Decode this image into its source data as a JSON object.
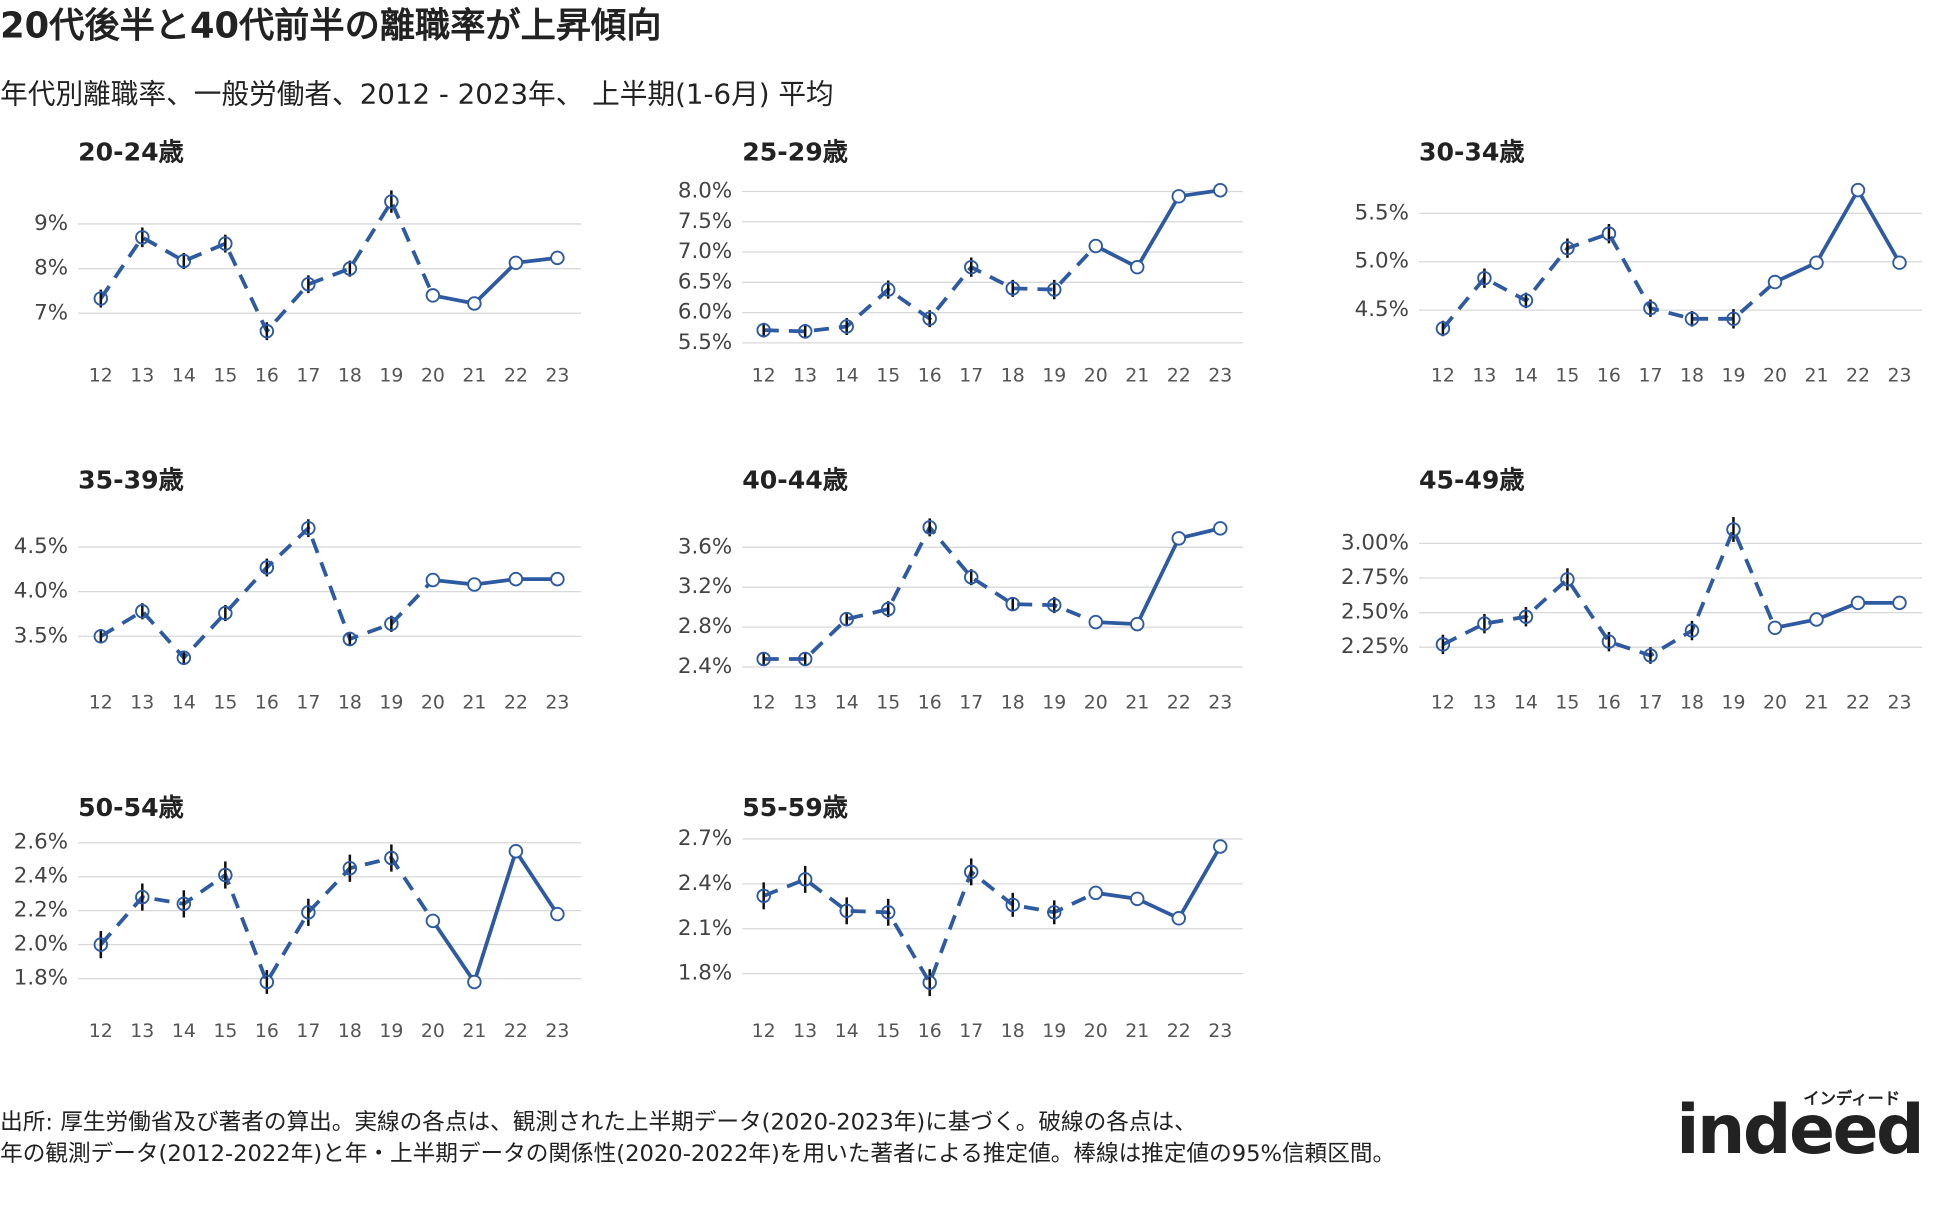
{
  "title": "20代後半と40代前半の離職率が上昇傾向",
  "subtitle": "年代別離職率、一般労働者、2012 - 2023年、 上半期(1-6月) 平均",
  "source": [
    "出所: 厚生労働省及び著者の算出。実線の各点は、観測された上半期データ(2020-2023年)に基づく。破線の各点は、",
    "年の観測データ(2012-2022年)と年・上半期データの関係性(2020-2022年)を用いた著者による推定値。棒線は推定値の95%信頼区間。"
  ],
  "logo": {
    "text": "indeed",
    "tag": "インディード"
  },
  "chart_data": [
    {
      "type": "line",
      "title": "20-24歳",
      "categories": [
        "12",
        "13",
        "14",
        "15",
        "16",
        "17",
        "18",
        "19",
        "20",
        "21",
        "22",
        "23"
      ],
      "values": [
        7.33,
        8.7,
        8.17,
        8.56,
        6.6,
        7.65,
        8.0,
        9.5,
        7.4,
        7.22,
        8.13,
        8.24
      ],
      "errors": [
        0.2,
        0.22,
        0.18,
        0.2,
        0.2,
        0.2,
        0.18,
        0.25,
        null,
        null,
        null,
        null
      ],
      "estimated": [
        true,
        true,
        true,
        true,
        true,
        true,
        true,
        true,
        false,
        false,
        false,
        false
      ],
      "color": "#2d5aa0",
      "ylim": [
        6.27,
        9.93
      ],
      "grid": true,
      "yticks": [
        {
          "value": 7,
          "label": "7%"
        },
        {
          "value": 8,
          "label": "8%"
        },
        {
          "value": 9,
          "label": "9%"
        }
      ]
    },
    {
      "type": "line",
      "title": "25-29歳",
      "categories": [
        "12",
        "13",
        "14",
        "15",
        "16",
        "17",
        "18",
        "19",
        "20",
        "21",
        "22",
        "23"
      ],
      "values": [
        5.71,
        5.69,
        5.77,
        6.38,
        5.9,
        6.75,
        6.4,
        6.38,
        7.1,
        6.75,
        7.92,
        8.02
      ],
      "errors": [
        0.12,
        0.12,
        0.14,
        0.15,
        0.14,
        0.16,
        0.14,
        0.16,
        null,
        null,
        null,
        null
      ],
      "estimated": [
        true,
        true,
        true,
        true,
        true,
        true,
        true,
        true,
        false,
        false,
        false,
        false
      ],
      "color": "#2d5aa0",
      "ylim": [
        5.45,
        8.15
      ],
      "grid": true,
      "yticks": [
        {
          "value": 5.5,
          "label": "5.5%"
        },
        {
          "value": 6,
          "label": "6.0%"
        },
        {
          "value": 6.5,
          "label": "6.5%"
        },
        {
          "value": 7,
          "label": "7.0%"
        },
        {
          "value": 7.5,
          "label": "7.5%"
        },
        {
          "value": 8,
          "label": "8.0%"
        }
      ]
    },
    {
      "type": "line",
      "title": "30-34歳",
      "categories": [
        "12",
        "13",
        "14",
        "15",
        "16",
        "17",
        "18",
        "19",
        "20",
        "21",
        "22",
        "23"
      ],
      "values": [
        4.31,
        4.83,
        4.6,
        5.14,
        5.29,
        4.52,
        4.41,
        4.41,
        4.79,
        4.99,
        5.74,
        4.99
      ],
      "errors": [
        0.08,
        0.1,
        0.08,
        0.1,
        0.1,
        0.09,
        0.08,
        0.1,
        null,
        null,
        null,
        null
      ],
      "estimated": [
        true,
        true,
        true,
        true,
        true,
        true,
        true,
        true,
        false,
        false,
        false,
        false
      ],
      "color": "#2d5aa0",
      "ylim": [
        4.13,
        5.82
      ],
      "grid": true,
      "yticks": [
        {
          "value": 4.5,
          "label": "4.5%"
        },
        {
          "value": 5,
          "label": "5.0%"
        },
        {
          "value": 5.5,
          "label": "5.5%"
        }
      ]
    },
    {
      "type": "line",
      "title": "35-39歳",
      "categories": [
        "12",
        "13",
        "14",
        "15",
        "16",
        "17",
        "18",
        "19",
        "20",
        "21",
        "22",
        "23"
      ],
      "values": [
        3.5,
        3.78,
        3.26,
        3.76,
        4.27,
        4.71,
        3.47,
        3.64,
        4.13,
        4.08,
        4.14,
        4.14
      ],
      "errors": [
        0.08,
        0.09,
        0.08,
        0.09,
        0.1,
        0.1,
        0.08,
        0.09,
        null,
        null,
        null,
        null
      ],
      "estimated": [
        true,
        true,
        true,
        true,
        true,
        true,
        true,
        true,
        false,
        false,
        false,
        false
      ],
      "color": "#2d5aa0",
      "ylim": [
        3.09,
        4.92
      ],
      "grid": true,
      "yticks": [
        {
          "value": 3.5,
          "label": "3.5%"
        },
        {
          "value": 4,
          "label": "4.0%"
        },
        {
          "value": 4.5,
          "label": "4.5%"
        }
      ]
    },
    {
      "type": "line",
      "title": "40-44歳",
      "categories": [
        "12",
        "13",
        "14",
        "15",
        "16",
        "17",
        "18",
        "19",
        "20",
        "21",
        "22",
        "23"
      ],
      "values": [
        2.48,
        2.48,
        2.88,
        2.98,
        3.8,
        3.3,
        3.03,
        3.02,
        2.85,
        2.83,
        3.69,
        3.79
      ],
      "errors": [
        0.07,
        0.07,
        0.07,
        0.08,
        0.09,
        0.08,
        0.07,
        0.08,
        null,
        null,
        null,
        null
      ],
      "estimated": [
        true,
        true,
        true,
        true,
        true,
        true,
        true,
        true,
        false,
        false,
        false,
        false
      ],
      "color": "#2d5aa0",
      "ylim": [
        2.34,
        3.98
      ],
      "grid": true,
      "yticks": [
        {
          "value": 2.4,
          "label": "2.4%"
        },
        {
          "value": 2.8,
          "label": "2.8%"
        },
        {
          "value": 3.2,
          "label": "3.2%"
        },
        {
          "value": 3.6,
          "label": "3.6%"
        }
      ]
    },
    {
      "type": "line",
      "title": "45-49歳",
      "categories": [
        "12",
        "13",
        "14",
        "15",
        "16",
        "17",
        "18",
        "19",
        "20",
        "21",
        "22",
        "23"
      ],
      "values": [
        2.27,
        2.42,
        2.47,
        2.74,
        2.29,
        2.19,
        2.37,
        3.1,
        2.39,
        2.45,
        2.57,
        2.57
      ],
      "errors": [
        0.07,
        0.07,
        0.07,
        0.08,
        0.07,
        0.06,
        0.07,
        0.09,
        null,
        null,
        null,
        null
      ],
      "estimated": [
        true,
        true,
        true,
        true,
        true,
        true,
        true,
        true,
        false,
        false,
        false,
        false
      ],
      "color": "#2d5aa0",
      "ylim": [
        2.064,
        3.245
      ],
      "grid": true,
      "yticks": [
        {
          "value": 2.25,
          "label": "2.25%"
        },
        {
          "value": 2.5,
          "label": "2.50%"
        },
        {
          "value": 2.75,
          "label": "2.75%"
        },
        {
          "value": 3,
          "label": "3.00%"
        }
      ]
    },
    {
      "type": "line",
      "title": "50-54歳",
      "categories": [
        "12",
        "13",
        "14",
        "15",
        "16",
        "17",
        "18",
        "19",
        "20",
        "21",
        "22",
        "23"
      ],
      "values": [
        2.0,
        2.28,
        2.24,
        2.41,
        1.78,
        2.19,
        2.45,
        2.51,
        2.14,
        1.78,
        2.55,
        2.18
      ],
      "errors": [
        0.08,
        0.08,
        0.08,
        0.08,
        0.07,
        0.08,
        0.08,
        0.08,
        null,
        null,
        null,
        null
      ],
      "estimated": [
        true,
        true,
        true,
        true,
        true,
        true,
        true,
        true,
        false,
        false,
        false,
        false
      ],
      "color": "#2d5aa0",
      "ylim": [
        1.674,
        2.637
      ],
      "grid": true,
      "yticks": [
        {
          "value": 1.8,
          "label": "1.8%"
        },
        {
          "value": 2,
          "label": "2.0%"
        },
        {
          "value": 2.2,
          "label": "2.2%"
        },
        {
          "value": 2.4,
          "label": "2.4%"
        },
        {
          "value": 2.6,
          "label": "2.6%"
        }
      ]
    },
    {
      "type": "line",
      "title": "55-59歳",
      "categories": [
        "12",
        "13",
        "14",
        "15",
        "16",
        "17",
        "18",
        "19",
        "20",
        "21",
        "22",
        "23"
      ],
      "values": [
        2.32,
        2.43,
        2.22,
        2.21,
        1.74,
        2.48,
        2.26,
        2.21,
        2.34,
        2.3,
        2.17,
        2.65
      ],
      "errors": [
        0.09,
        0.09,
        0.09,
        0.09,
        0.09,
        0.09,
        0.08,
        0.08,
        null,
        null,
        null,
        null
      ],
      "estimated": [
        true,
        true,
        true,
        true,
        true,
        true,
        true,
        true,
        false,
        false,
        false,
        false
      ],
      "color": "#2d5aa0",
      "ylim": [
        1.624,
        2.717
      ],
      "grid": true,
      "yticks": [
        {
          "value": 1.8,
          "label": "1.8%"
        },
        {
          "value": 2.1,
          "label": "2.1%"
        },
        {
          "value": 2.4,
          "label": "2.4%"
        },
        {
          "value": 2.7,
          "label": "2.7%"
        }
      ]
    }
  ]
}
